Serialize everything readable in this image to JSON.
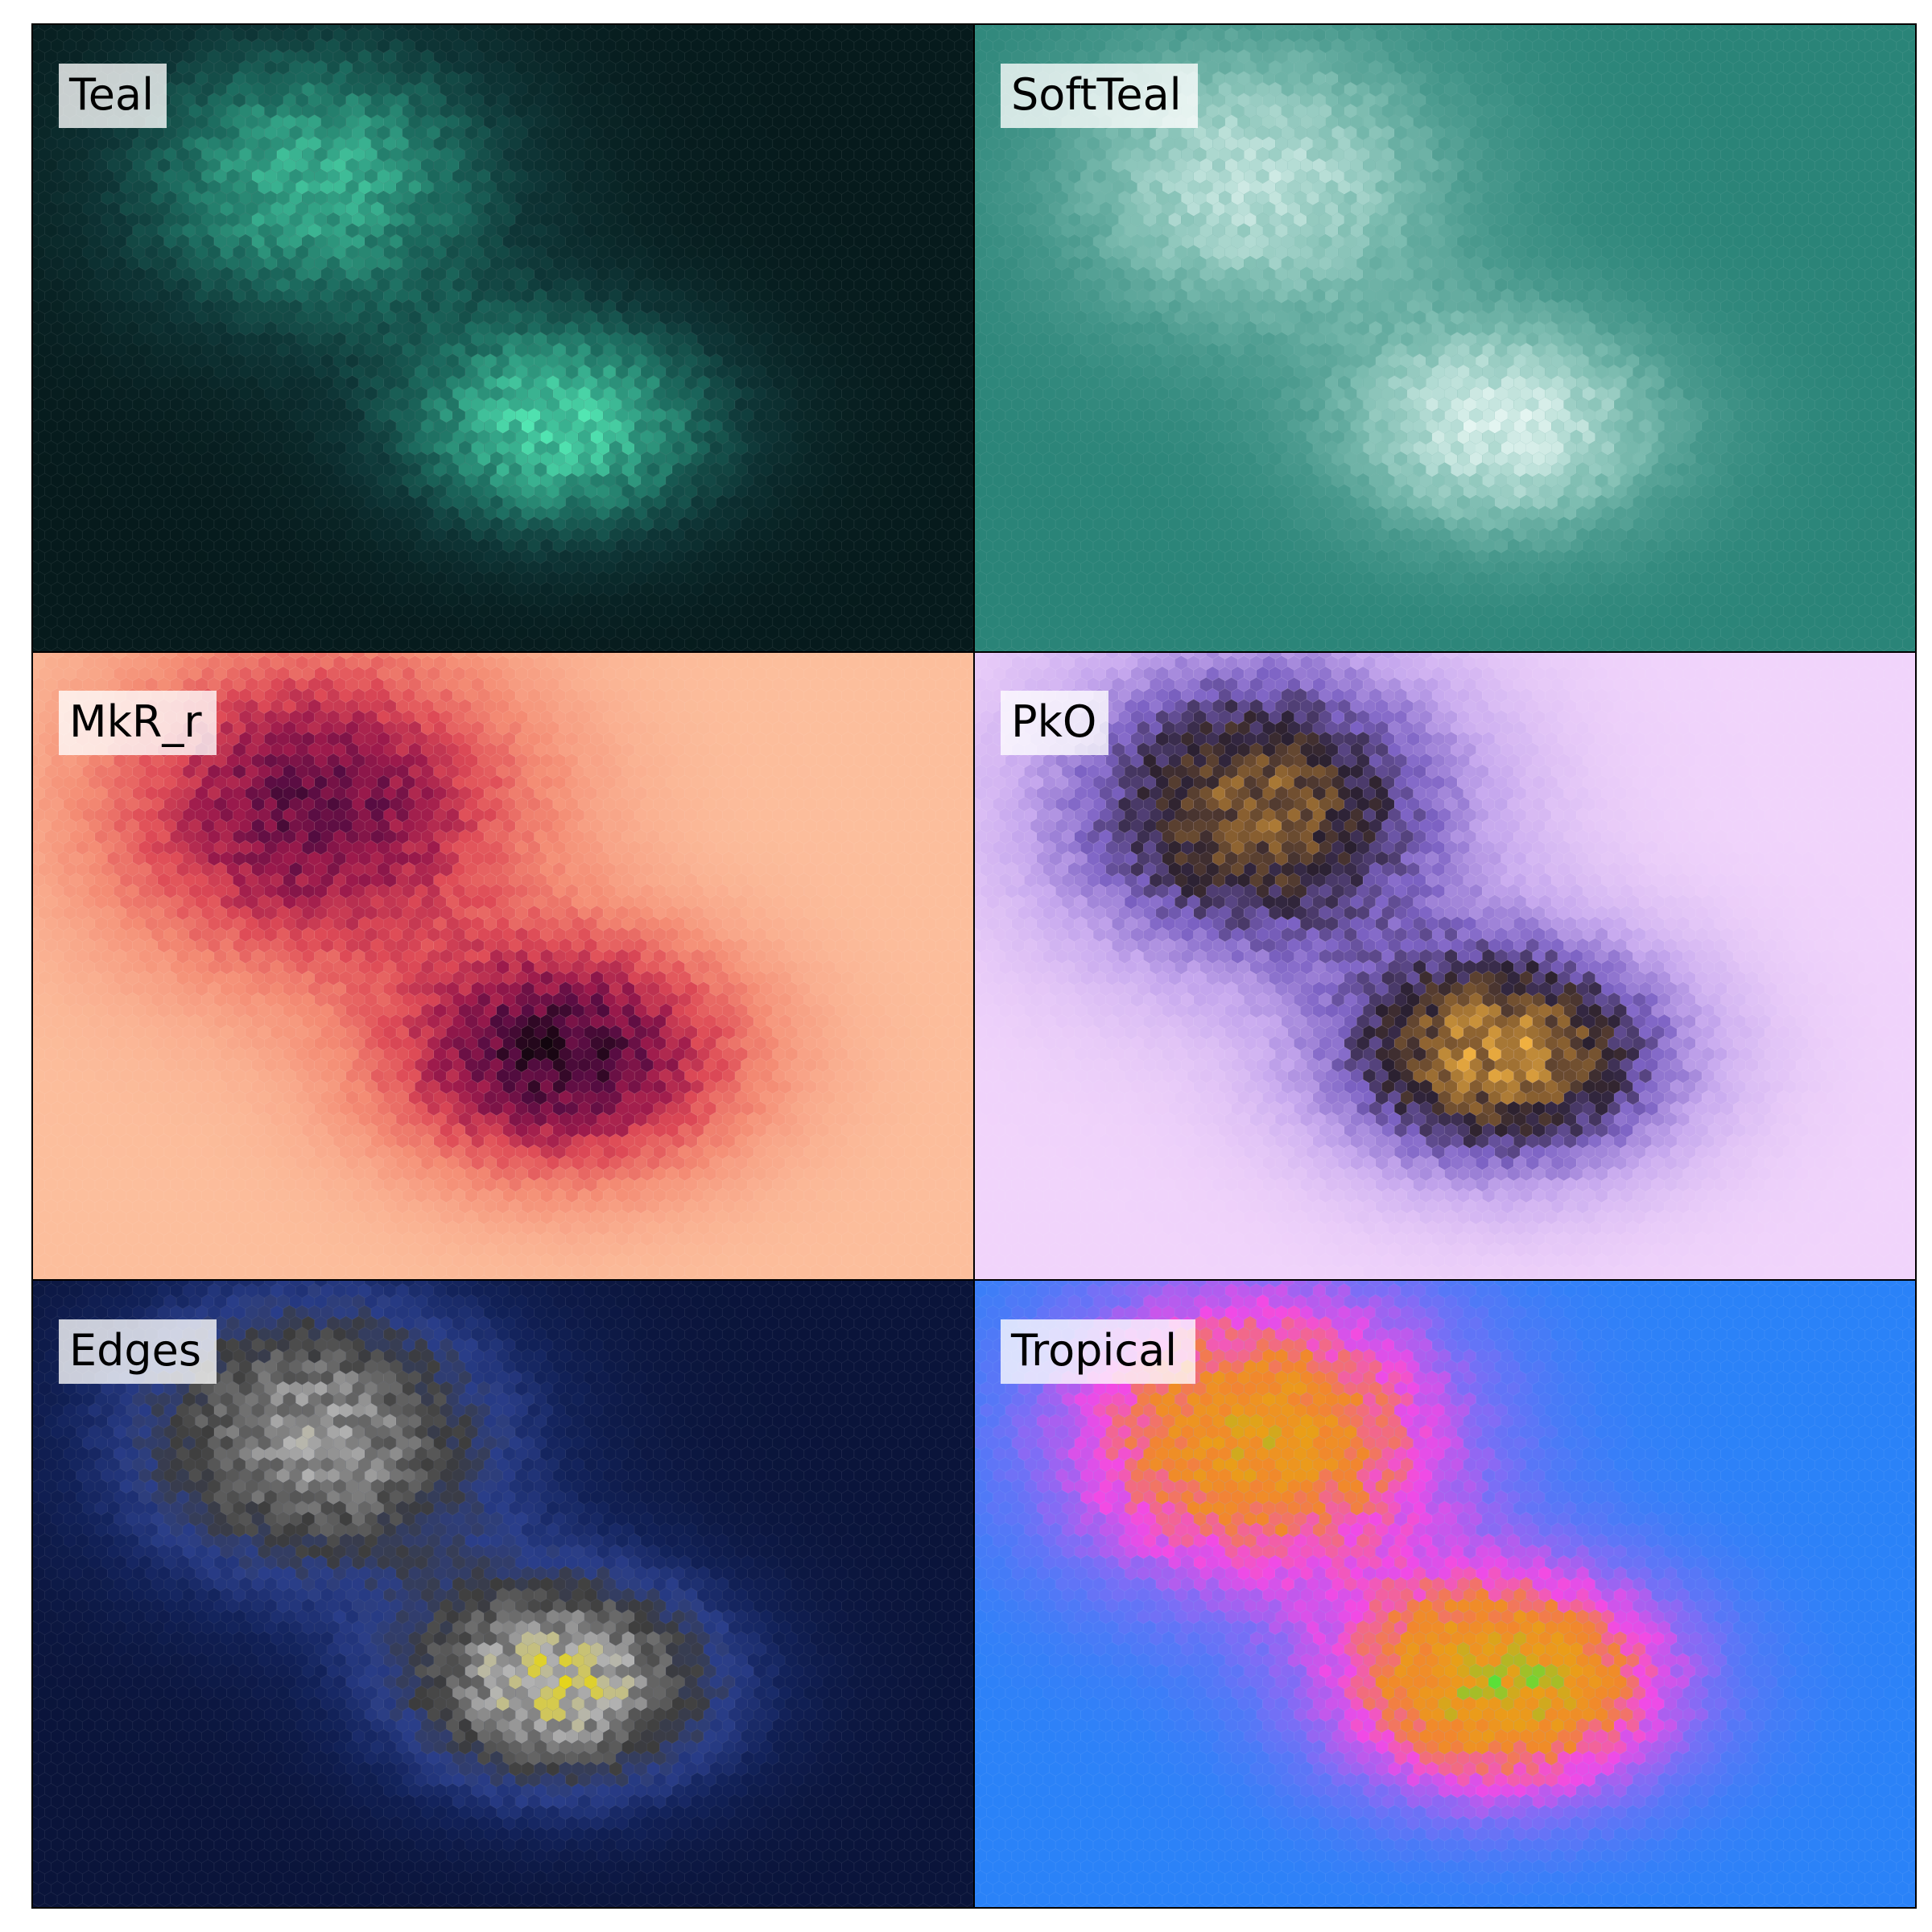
{
  "chart_data": [
    {
      "type": "heatmap",
      "title": "Teal",
      "colormap": [
        "#061a1c",
        "#0e3536",
        "#1c6a5e",
        "#35a88a",
        "#52e6b2"
      ],
      "blobs": [
        {
          "cx": 0.3,
          "cy": 0.25,
          "sx": 0.14,
          "sy": 0.16,
          "weight": 0.85
        },
        {
          "cx": 0.56,
          "cy": 0.64,
          "sx": 0.12,
          "sy": 0.12,
          "weight": 1.0
        }
      ]
    },
    {
      "type": "heatmap",
      "title": "SoftTeal",
      "colormap": [
        "#2a8478",
        "#4a9a8e",
        "#7cbcb0",
        "#b2dbd3",
        "#e4f5f1"
      ],
      "blobs": [
        {
          "cx": 0.3,
          "cy": 0.25,
          "sx": 0.14,
          "sy": 0.16,
          "weight": 0.85
        },
        {
          "cx": 0.56,
          "cy": 0.64,
          "sx": 0.12,
          "sy": 0.12,
          "weight": 1.0
        }
      ]
    },
    {
      "type": "heatmap",
      "title": "MkR_r",
      "colormap": [
        "#fcbe9c",
        "#f48c74",
        "#de4a56",
        "#9c1a4c",
        "#560c42",
        "#12050e"
      ],
      "blobs": [
        {
          "cx": 0.3,
          "cy": 0.25,
          "sx": 0.14,
          "sy": 0.16,
          "weight": 0.85
        },
        {
          "cx": 0.56,
          "cy": 0.64,
          "sx": 0.12,
          "sy": 0.12,
          "weight": 1.0
        }
      ]
    },
    {
      "type": "heatmap",
      "title": "PkO",
      "colormap": [
        "#f1d4fb",
        "#c6a8ee",
        "#7c62c4",
        "#2a2030",
        "#8a6030",
        "#f0b040"
      ],
      "blobs": [
        {
          "cx": 0.3,
          "cy": 0.25,
          "sx": 0.14,
          "sy": 0.16,
          "weight": 0.85
        },
        {
          "cx": 0.56,
          "cy": 0.64,
          "sx": 0.12,
          "sy": 0.12,
          "weight": 1.0
        }
      ]
    },
    {
      "type": "heatmap",
      "title": "Edges",
      "colormap": [
        "#0a143a",
        "#12225a",
        "#2a3e8a",
        "#3c3c3c",
        "#707070",
        "#b4b4b4",
        "#e4d41c"
      ],
      "blobs": [
        {
          "cx": 0.3,
          "cy": 0.25,
          "sx": 0.14,
          "sy": 0.16,
          "weight": 0.85
        },
        {
          "cx": 0.56,
          "cy": 0.64,
          "sx": 0.12,
          "sy": 0.12,
          "weight": 1.0
        }
      ]
    },
    {
      "type": "heatmap",
      "title": "Tropical",
      "colormap": [
        "#2a82f8",
        "#7a6ef6",
        "#f24ae6",
        "#f2862e",
        "#ea9e18",
        "#5ae038"
      ],
      "blobs": [
        {
          "cx": 0.3,
          "cy": 0.25,
          "sx": 0.14,
          "sy": 0.16,
          "weight": 0.85
        },
        {
          "cx": 0.56,
          "cy": 0.64,
          "sx": 0.12,
          "sy": 0.12,
          "weight": 1.0
        }
      ]
    }
  ]
}
